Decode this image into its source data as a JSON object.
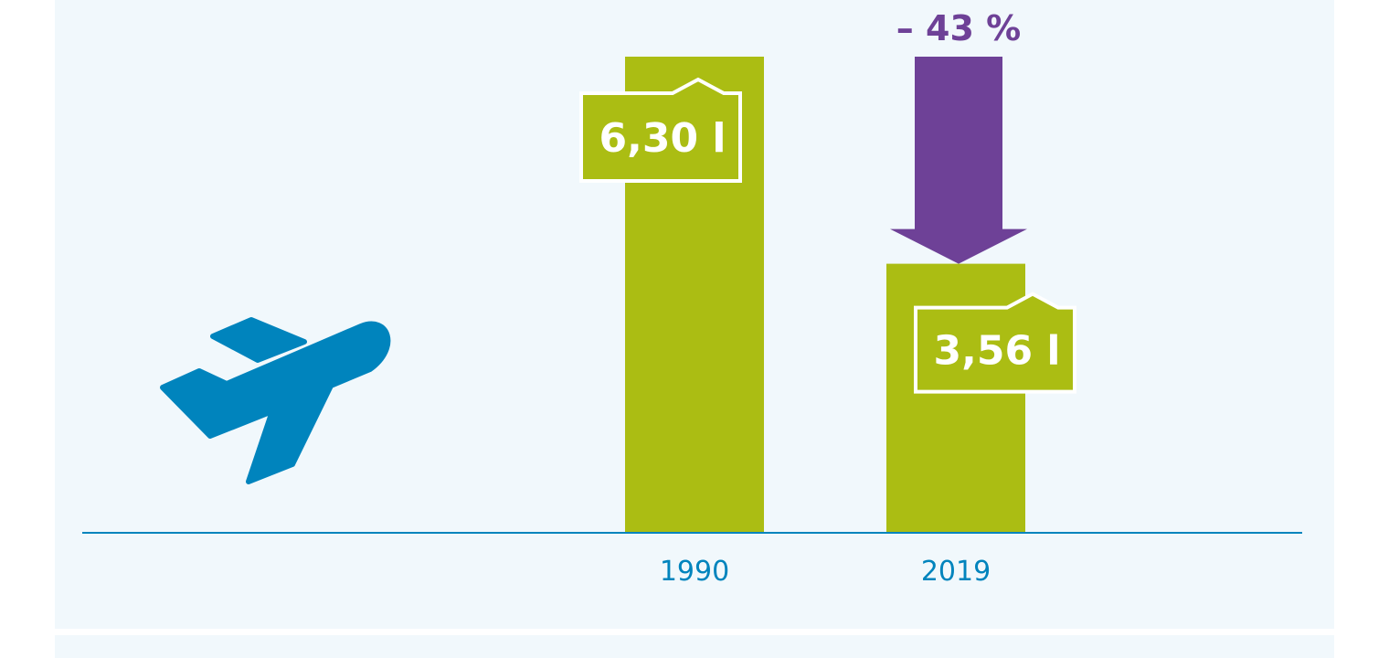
{
  "chart_data": {
    "type": "bar",
    "categories": [
      "1990",
      "2019"
    ],
    "values": [
      6.3,
      3.56
    ],
    "value_labels": [
      "6,30 l",
      "3,56 l"
    ],
    "change_label": "– 43 %",
    "ylim": [
      0,
      7
    ],
    "grid": false,
    "legend": "none",
    "icon": "airplane-icon",
    "colors": {
      "bar": "#abbd13",
      "arrow": "#6e4197",
      "axis": "#0084bd",
      "icon": "#0084bd",
      "background": "#f1f8fc"
    }
  }
}
